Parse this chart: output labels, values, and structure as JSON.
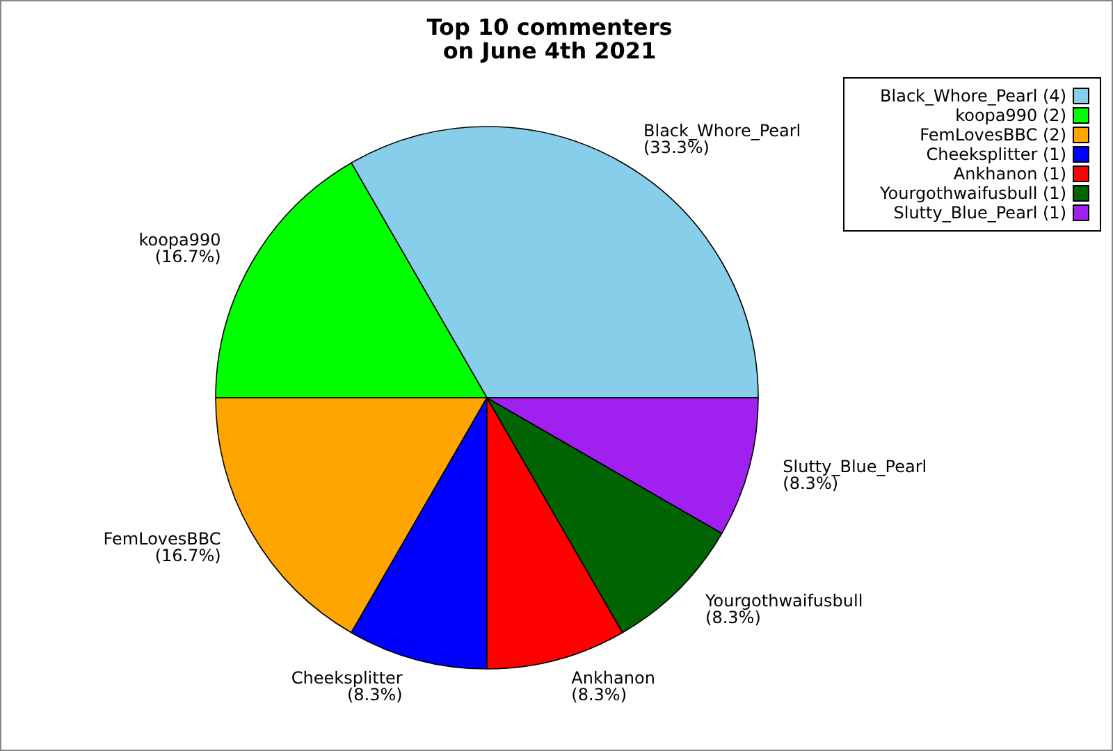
{
  "chart_data": {
    "type": "pie",
    "title": "Top 10 commenters\non June 4th 2021",
    "categories": [
      "Black_Whore_Pearl",
      "koopa990",
      "FemLovesBBC",
      "Cheeksplitter",
      "Ankhanon",
      "Yourgothwaifusbull",
      "Slutty_Blue_Pearl"
    ],
    "values": [
      4,
      2,
      2,
      1,
      1,
      1,
      1
    ],
    "colors": [
      "#87ceeb",
      "#00ff00",
      "#ffa500",
      "#0000ff",
      "#ff0000",
      "#006400",
      "#a020f0"
    ],
    "value_labels": [
      "(4)",
      "(2)",
      "(2)",
      "(1)",
      "(1)",
      "(1)",
      "(1)"
    ],
    "annotations": [
      "(33.3%)",
      "(16.7%)",
      "(16.7%)",
      "(8.3%)",
      "(8.3%)",
      "(8.3%)",
      "(8.3%)"
    ],
    "legend": "top right"
  }
}
